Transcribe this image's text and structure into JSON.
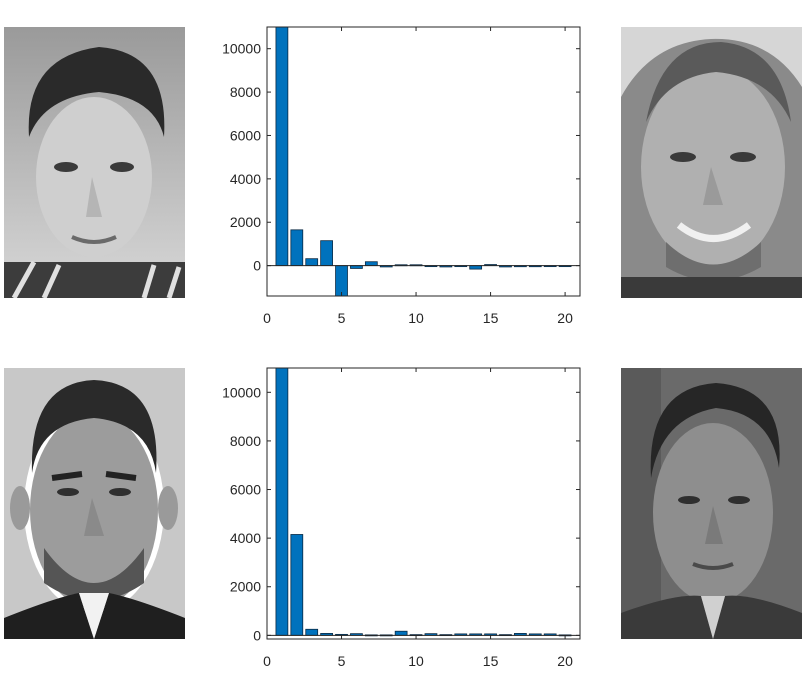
{
  "colors": {
    "bar_fill": "#0072bd",
    "bar_edge": "#0a2a44",
    "axis": "#262626",
    "background": "#ffffff"
  },
  "photos": [
    {
      "position": "top-left",
      "icon": "face-photo-grayscale"
    },
    {
      "position": "top-right",
      "icon": "face-photo-grayscale"
    },
    {
      "position": "bottom-left",
      "icon": "face-photo-grayscale"
    },
    {
      "position": "bottom-right",
      "icon": "face-photo-grayscale"
    }
  ],
  "chart_data": [
    {
      "type": "bar",
      "title": "",
      "xlabel": "",
      "ylabel": "",
      "x": [
        1,
        2,
        3,
        4,
        5,
        6,
        7,
        8,
        9,
        10,
        11,
        12,
        13,
        14,
        15,
        16,
        17,
        18,
        19,
        20
      ],
      "values": [
        11000,
        1650,
        320,
        1150,
        -1500,
        -130,
        180,
        -60,
        40,
        40,
        -30,
        -60,
        -40,
        -160,
        50,
        -60,
        -50,
        -50,
        -40,
        -40
      ],
      "xlim": [
        0,
        21
      ],
      "ylim": [
        -1400,
        11000
      ],
      "xticks": [
        0,
        5,
        10,
        15,
        20
      ],
      "yticks": [
        0,
        2000,
        4000,
        6000,
        8000,
        10000
      ],
      "xtick_labels": [
        "0",
        "5",
        "10",
        "15",
        "20"
      ],
      "ytick_labels": [
        "0",
        "2000",
        "4000",
        "6000",
        "8000",
        "10000"
      ],
      "grid": false,
      "baseline": 0
    },
    {
      "type": "bar",
      "title": "",
      "xlabel": "",
      "ylabel": "",
      "x": [
        1,
        2,
        3,
        4,
        5,
        6,
        7,
        8,
        9,
        10,
        11,
        12,
        13,
        14,
        15,
        16,
        17,
        18,
        19,
        20
      ],
      "values": [
        11000,
        4150,
        250,
        80,
        40,
        70,
        20,
        20,
        170,
        30,
        70,
        30,
        60,
        60,
        60,
        30,
        80,
        60,
        60,
        20
      ],
      "xlim": [
        0,
        21
      ],
      "ylim": [
        -150,
        11000
      ],
      "xticks": [
        0,
        5,
        10,
        15,
        20
      ],
      "yticks": [
        0,
        2000,
        4000,
        6000,
        8000,
        10000
      ],
      "xtick_labels": [
        "0",
        "5",
        "10",
        "15",
        "20"
      ],
      "ytick_labels": [
        "0",
        "2000",
        "4000",
        "6000",
        "8000",
        "10000"
      ],
      "grid": false,
      "baseline": 0
    }
  ]
}
